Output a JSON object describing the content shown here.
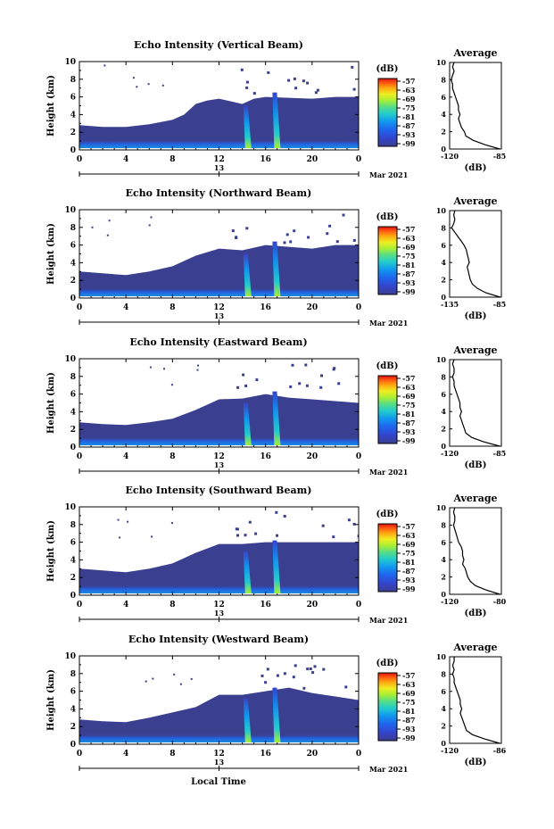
{
  "figure": {
    "x_label": "Local Time",
    "panels": [
      {
        "title": "Echo Intensity (Vertical Beam)",
        "avg_title": "Average",
        "avg_min_label": "-120",
        "avg_max_label": "-85",
        "avg_xlabel": "(dB)"
      },
      {
        "title": "Echo Intensity (Northward Beam)",
        "avg_title": "Average",
        "avg_min_label": "-135",
        "avg_max_label": "-85",
        "avg_xlabel": "(dB)"
      },
      {
        "title": "Echo Intensity (Eastward Beam)",
        "avg_title": "Average",
        "avg_min_label": "-120",
        "avg_max_label": "-85",
        "avg_xlabel": "(dB)"
      },
      {
        "title": "Echo Intensity (Southward Beam)",
        "avg_title": "Average",
        "avg_min_label": "-120",
        "avg_max_label": "-80",
        "avg_xlabel": "(dB)"
      },
      {
        "title": "Echo Intensity (Westward Beam)",
        "avg_title": "Average",
        "avg_min_label": "-120",
        "avg_max_label": "-86",
        "avg_xlabel": "(dB)"
      }
    ],
    "ylabel": "Height (km)",
    "y_ticks": [
      "0",
      "2",
      "4",
      "6",
      "8",
      "10"
    ],
    "x_ticks": [
      "0",
      "4",
      "8",
      "12",
      "16",
      "20",
      "0"
    ],
    "date_marker": "13",
    "date_label": "Mar 2021",
    "colorbar": {
      "unit_label": "(dB)",
      "ticks": [
        "-57",
        "-63",
        "-69",
        "-75",
        "-81",
        "-87",
        "-93",
        "-99"
      ],
      "colors": [
        "#3b3f8f",
        "#3344cc",
        "#1f66ee",
        "#1199ee",
        "#22cccc",
        "#55dd88",
        "#aaee33",
        "#eeee22",
        "#ffaa11",
        "#ff5511",
        "#dd1111"
      ]
    }
  },
  "chart_data": [
    {
      "type": "heatmap",
      "title": "Echo Intensity (Vertical Beam)",
      "xlabel": "",
      "ylabel": "Height (km)",
      "xlim_hours": [
        0,
        24
      ],
      "ylim": [
        0,
        10
      ],
      "x_ticks": [
        "0",
        "4",
        "8",
        "12",
        "16",
        "20",
        "0"
      ],
      "y_ticks": [
        0,
        2,
        4,
        6,
        8,
        10
      ],
      "date": "13 Mar 2021",
      "color_scale": {
        "unit": "(dB)",
        "ticks": [
          -57,
          -63,
          -69,
          -75,
          -81,
          -87,
          -93,
          -99
        ]
      },
      "echo_top_km": [
        [
          0,
          2.8
        ],
        [
          2,
          2.6
        ],
        [
          4,
          2.6
        ],
        [
          6,
          2.9
        ],
        [
          8,
          3.4
        ],
        [
          9,
          4.0
        ],
        [
          10,
          5.2
        ],
        [
          11,
          5.6
        ],
        [
          12,
          5.8
        ],
        [
          13,
          5.5
        ],
        [
          14,
          5.2
        ],
        [
          15,
          5.8
        ],
        [
          16,
          6.0
        ],
        [
          18,
          5.9
        ],
        [
          20,
          5.8
        ],
        [
          22,
          6.0
        ],
        [
          24,
          6.0
        ]
      ],
      "intense_plumes": [
        {
          "hour": 14.4,
          "top_km": 5.0
        },
        {
          "hour": 16.9,
          "top_km": 6.5
        }
      ],
      "average_profile": {
        "xlim_db": [
          -120,
          -85
        ],
        "xlabel": "(dB)",
        "title": "Average",
        "height_km": [
          0,
          0.5,
          1.0,
          1.5,
          2.0,
          2.5,
          3.0,
          3.5,
          4.0,
          4.5,
          5.0,
          5.5,
          6.0,
          6.5,
          7.0,
          7.5,
          8.0,
          8.5,
          9.0,
          9.5,
          10.0
        ],
        "db": [
          -86,
          -96,
          -104,
          -109,
          -110,
          -112,
          -113,
          -114,
          -113,
          -114,
          -114,
          -115,
          -116,
          -117,
          -118,
          -118,
          -119,
          -118,
          -117,
          -118,
          -117
        ]
      }
    },
    {
      "type": "heatmap",
      "title": "Echo Intensity (Northward Beam)",
      "xlabel": "",
      "ylabel": "Height (km)",
      "xlim_hours": [
        0,
        24
      ],
      "ylim": [
        0,
        10
      ],
      "x_ticks": [
        "0",
        "4",
        "8",
        "12",
        "16",
        "20",
        "0"
      ],
      "y_ticks": [
        0,
        2,
        4,
        6,
        8,
        10
      ],
      "date": "13 Mar 2021",
      "color_scale": {
        "unit": "(dB)",
        "ticks": [
          -57,
          -63,
          -69,
          -75,
          -81,
          -87,
          -93,
          -99
        ]
      },
      "echo_top_km": [
        [
          0,
          3.0
        ],
        [
          2,
          2.8
        ],
        [
          4,
          2.6
        ],
        [
          6,
          3.0
        ],
        [
          8,
          3.6
        ],
        [
          10,
          4.8
        ],
        [
          12,
          5.6
        ],
        [
          14,
          5.4
        ],
        [
          16,
          6.0
        ],
        [
          18,
          5.8
        ],
        [
          20,
          5.6
        ],
        [
          22,
          6.0
        ],
        [
          24,
          6.0
        ]
      ],
      "intense_plumes": [
        {
          "hour": 14.4,
          "top_km": 5.0
        },
        {
          "hour": 16.9,
          "top_km": 6.4
        }
      ],
      "average_profile": {
        "xlim_db": [
          -135,
          -85
        ],
        "xlabel": "(dB)",
        "title": "Average",
        "height_km": [
          0,
          0.5,
          1.0,
          1.5,
          2.0,
          2.5,
          3.0,
          3.5,
          4.0,
          4.5,
          5.0,
          5.5,
          6.0,
          6.5,
          7.0,
          7.5,
          8.0,
          8.5,
          9.0,
          9.5,
          10.0
        ],
        "db": [
          -86,
          -100,
          -108,
          -113,
          -115,
          -116,
          -117,
          -118,
          -116,
          -117,
          -118,
          -119,
          -121,
          -124,
          -127,
          -130,
          -133,
          -131,
          -130,
          -131,
          -130
        ]
      }
    },
    {
      "type": "heatmap",
      "title": "Echo Intensity (Eastward Beam)",
      "xlabel": "",
      "ylabel": "Height (km)",
      "xlim_hours": [
        0,
        24
      ],
      "ylim": [
        0,
        10
      ],
      "x_ticks": [
        "0",
        "4",
        "8",
        "12",
        "16",
        "20",
        "0"
      ],
      "y_ticks": [
        0,
        2,
        4,
        6,
        8,
        10
      ],
      "date": "13 Mar 2021",
      "color_scale": {
        "unit": "(dB)",
        "ticks": [
          -57,
          -63,
          -69,
          -75,
          -81,
          -87,
          -93,
          -99
        ]
      },
      "echo_top_km": [
        [
          0,
          2.8
        ],
        [
          2,
          2.6
        ],
        [
          4,
          2.5
        ],
        [
          6,
          2.8
        ],
        [
          8,
          3.2
        ],
        [
          10,
          4.2
        ],
        [
          12,
          5.4
        ],
        [
          14,
          5.5
        ],
        [
          16,
          6.0
        ],
        [
          18,
          5.6
        ],
        [
          20,
          5.4
        ],
        [
          22,
          5.2
        ],
        [
          24,
          5.0
        ]
      ],
      "intense_plumes": [
        {
          "hour": 14.4,
          "top_km": 5.0
        },
        {
          "hour": 16.9,
          "top_km": 6.3
        }
      ],
      "average_profile": {
        "xlim_db": [
          -120,
          -85
        ],
        "xlabel": "(dB)",
        "title": "Average",
        "height_km": [
          0,
          0.5,
          1.0,
          1.5,
          2.0,
          2.5,
          3.0,
          3.5,
          4.0,
          4.5,
          5.0,
          5.5,
          6.0,
          6.5,
          7.0,
          7.5,
          8.0,
          8.5,
          9.0,
          9.5,
          10.0
        ],
        "db": [
          -86,
          -97,
          -105,
          -109,
          -110,
          -111,
          -112,
          -113,
          -112,
          -113,
          -113,
          -114,
          -115,
          -116,
          -117,
          -117,
          -118,
          -117,
          -117,
          -118,
          -117
        ]
      }
    },
    {
      "type": "heatmap",
      "title": "Echo Intensity (Southward Beam)",
      "xlabel": "",
      "ylabel": "Height (km)",
      "xlim_hours": [
        0,
        24
      ],
      "ylim": [
        0,
        10
      ],
      "x_ticks": [
        "0",
        "4",
        "8",
        "12",
        "16",
        "20",
        "0"
      ],
      "y_ticks": [
        0,
        2,
        4,
        6,
        8,
        10
      ],
      "date": "13 Mar 2021",
      "color_scale": {
        "unit": "(dB)",
        "ticks": [
          -57,
          -63,
          -69,
          -75,
          -81,
          -87,
          -93,
          -99
        ]
      },
      "echo_top_km": [
        [
          0,
          3.0
        ],
        [
          2,
          2.8
        ],
        [
          4,
          2.6
        ],
        [
          6,
          3.0
        ],
        [
          8,
          3.6
        ],
        [
          10,
          4.8
        ],
        [
          12,
          5.8
        ],
        [
          14,
          5.8
        ],
        [
          16,
          6.0
        ],
        [
          18,
          6.0
        ],
        [
          20,
          6.0
        ],
        [
          22,
          6.0
        ],
        [
          24,
          6.0
        ]
      ],
      "intense_plumes": [
        {
          "hour": 14.4,
          "top_km": 5.0
        },
        {
          "hour": 16.9,
          "top_km": 6.2
        }
      ],
      "average_profile": {
        "xlim_db": [
          -120,
          -80
        ],
        "xlabel": "(dB)",
        "title": "Average",
        "height_km": [
          0,
          0.5,
          1.0,
          1.5,
          2.0,
          2.5,
          3.0,
          3.5,
          4.0,
          4.5,
          5.0,
          5.5,
          6.0,
          6.5,
          7.0,
          7.5,
          8.0,
          8.5,
          9.0,
          9.5,
          10.0
        ],
        "db": [
          -81,
          -92,
          -100,
          -104,
          -106,
          -107,
          -108,
          -110,
          -109,
          -110,
          -110,
          -111,
          -113,
          -114,
          -115,
          -116,
          -117,
          -116,
          -116,
          -117,
          -116
        ]
      }
    },
    {
      "type": "heatmap",
      "title": "Echo Intensity (Westward Beam)",
      "xlabel": "Local Time",
      "ylabel": "Height (km)",
      "xlim_hours": [
        0,
        24
      ],
      "ylim": [
        0,
        10
      ],
      "x_ticks": [
        "0",
        "4",
        "8",
        "12",
        "16",
        "20",
        "0"
      ],
      "y_ticks": [
        0,
        2,
        4,
        6,
        8,
        10
      ],
      "date": "13 Mar 2021",
      "color_scale": {
        "unit": "(dB)",
        "ticks": [
          -57,
          -63,
          -69,
          -75,
          -81,
          -87,
          -93,
          -99
        ]
      },
      "echo_top_km": [
        [
          0,
          2.8
        ],
        [
          2,
          2.6
        ],
        [
          4,
          2.5
        ],
        [
          6,
          3.0
        ],
        [
          8,
          3.6
        ],
        [
          10,
          4.2
        ],
        [
          12,
          5.6
        ],
        [
          14,
          5.6
        ],
        [
          16,
          6.0
        ],
        [
          18,
          6.4
        ],
        [
          20,
          5.8
        ],
        [
          22,
          5.4
        ],
        [
          24,
          5.0
        ]
      ],
      "intense_plumes": [
        {
          "hour": 14.4,
          "top_km": 5.2
        },
        {
          "hour": 16.9,
          "top_km": 6.4
        }
      ],
      "average_profile": {
        "xlim_db": [
          -120,
          -86
        ],
        "xlabel": "(dB)",
        "title": "Average",
        "height_km": [
          0,
          0.5,
          1.0,
          1.5,
          2.0,
          2.5,
          3.0,
          3.5,
          4.0,
          4.5,
          5.0,
          5.5,
          6.0,
          6.5,
          7.0,
          7.5,
          8.0,
          8.5,
          9.0,
          9.5,
          10.0
        ],
        "db": [
          -87,
          -97,
          -105,
          -109,
          -110,
          -111,
          -112,
          -113,
          -112,
          -113,
          -113,
          -114,
          -115,
          -116,
          -117,
          -117,
          -118,
          -117,
          -118,
          -117,
          -117
        ]
      }
    }
  ]
}
